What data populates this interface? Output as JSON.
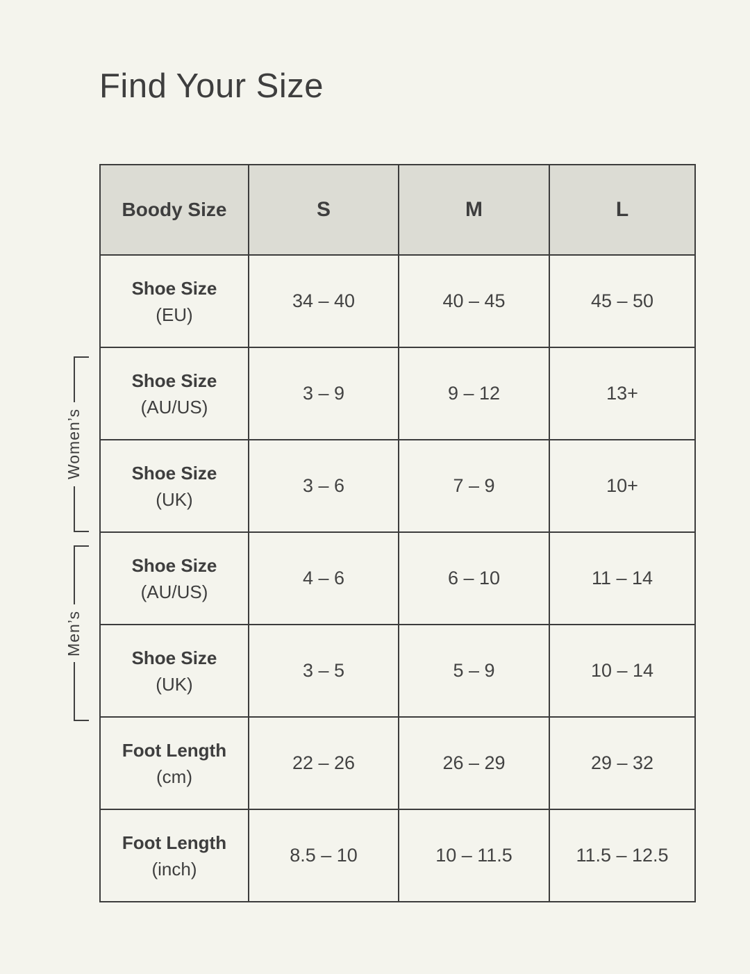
{
  "page": {
    "title": "Find Your Size"
  },
  "colors": {
    "background": "#f4f4ed",
    "header_background": "#dcdcd4",
    "border": "#3c3c3c",
    "text": "#3e3e3e"
  },
  "chart_data": {
    "type": "table",
    "title": "Find Your Size",
    "header": [
      "Boody Size",
      "S",
      "M",
      "L"
    ],
    "rows": [
      {
        "label_line1": "Shoe Size",
        "label_line2": "(EU)",
        "values": [
          "34 – 40",
          "40 – 45",
          "45 – 50"
        ]
      },
      {
        "label_line1": "Shoe Size",
        "label_line2": "(AU/US)",
        "values": [
          "3 – 9",
          "9 – 12",
          "13+"
        ]
      },
      {
        "label_line1": "Shoe Size",
        "label_line2": "(UK)",
        "values": [
          "3 – 6",
          "7 – 9",
          "10+"
        ]
      },
      {
        "label_line1": "Shoe Size",
        "label_line2": "(AU/US)",
        "values": [
          "4 – 6",
          "6 – 10",
          "11 – 14"
        ]
      },
      {
        "label_line1": "Shoe Size",
        "label_line2": "(UK)",
        "values": [
          "3 – 5",
          "5 – 9",
          "10 – 14"
        ]
      },
      {
        "label_line1": "Foot Length",
        "label_line2": "(cm)",
        "values": [
          "22 – 26",
          "26 – 29",
          "29 – 32"
        ]
      },
      {
        "label_line1": "Foot Length",
        "label_line2": "(inch)",
        "values": [
          "8.5 – 10",
          "10 – 11.5",
          "11.5 – 12.5"
        ]
      }
    ],
    "side_groups": [
      {
        "label": "Women’s",
        "covers_rows": [
          2,
          3
        ]
      },
      {
        "label": "Men’s",
        "covers_rows": [
          4,
          5
        ]
      }
    ]
  }
}
